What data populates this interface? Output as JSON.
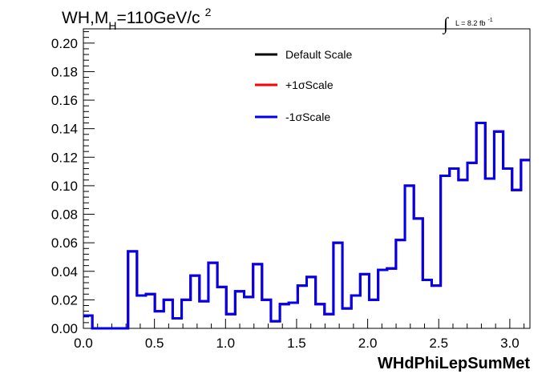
{
  "chart_data": {
    "type": "line",
    "title": {
      "main": "WH,M",
      "sub": "H",
      "rest": "=110GeV/c",
      "sup": "2"
    },
    "lumi": {
      "integral": "∫",
      "text": "L = 8.2 fb",
      "sup": "-1"
    },
    "xlabel": "WHdPhiLepSumMet",
    "ylabel": "",
    "xlim": [
      0.0,
      3.1416
    ],
    "ylim": [
      0.0,
      0.21
    ],
    "x_ticks": [
      "0.0",
      "0.5",
      "1.0",
      "1.5",
      "2.0",
      "2.5",
      "3.0"
    ],
    "y_ticks": [
      "0.00",
      "0.02",
      "0.04",
      "0.06",
      "0.08",
      "0.10",
      "0.12",
      "0.14",
      "0.16",
      "0.18",
      "0.20"
    ],
    "grid": false,
    "legend_placement": "top-center",
    "bin_edges": [
      0.0,
      0.0628,
      0.1257,
      0.1885,
      0.2513,
      0.3142,
      0.377,
      0.4398,
      0.5027,
      0.5655,
      0.6283,
      0.6912,
      0.754,
      0.8168,
      0.8796,
      0.9425,
      1.0053,
      1.0681,
      1.131,
      1.1938,
      1.2566,
      1.3195,
      1.3823,
      1.4451,
      1.508,
      1.5708,
      1.6336,
      1.6965,
      1.7593,
      1.8221,
      1.885,
      1.9478,
      2.0106,
      2.0735,
      2.1363,
      2.1991,
      2.2619,
      2.3248,
      2.3876,
      2.4504,
      2.5133,
      2.5761,
      2.6389,
      2.7018,
      2.7646,
      2.8274,
      2.8903,
      2.9531,
      3.0159,
      3.0788,
      3.1416
    ],
    "series": [
      {
        "name": "Default Scale",
        "color": "#000000",
        "values": [
          0.009,
          0.0,
          0.0,
          0.0,
          0.0,
          0.054,
          0.023,
          0.024,
          0.012,
          0.02,
          0.007,
          0.02,
          0.037,
          0.019,
          0.046,
          0.029,
          0.01,
          0.026,
          0.022,
          0.045,
          0.02,
          0.005,
          0.017,
          0.018,
          0.03,
          0.036,
          0.017,
          0.01,
          0.06,
          0.014,
          0.023,
          0.038,
          0.02,
          0.041,
          0.042,
          0.062,
          0.1,
          0.077,
          0.034,
          0.03,
          0.107,
          0.112,
          0.104,
          0.116,
          0.144,
          0.105,
          0.138,
          0.112,
          0.097,
          0.118
        ]
      },
      {
        "name": "+1σScale",
        "color": "#ff0000",
        "values": [
          0.009,
          0.0,
          0.0,
          0.0,
          0.0,
          0.054,
          0.023,
          0.024,
          0.012,
          0.02,
          0.007,
          0.02,
          0.037,
          0.019,
          0.046,
          0.029,
          0.01,
          0.026,
          0.022,
          0.045,
          0.02,
          0.005,
          0.017,
          0.018,
          0.03,
          0.036,
          0.017,
          0.01,
          0.06,
          0.014,
          0.023,
          0.038,
          0.02,
          0.041,
          0.042,
          0.062,
          0.1,
          0.077,
          0.034,
          0.03,
          0.107,
          0.112,
          0.104,
          0.116,
          0.144,
          0.105,
          0.138,
          0.112,
          0.097,
          0.118
        ]
      },
      {
        "name": "-1σScale",
        "color": "#0000ee",
        "values": [
          0.009,
          0.0,
          0.0,
          0.0,
          0.0,
          0.054,
          0.023,
          0.024,
          0.012,
          0.02,
          0.007,
          0.02,
          0.037,
          0.019,
          0.046,
          0.029,
          0.01,
          0.026,
          0.022,
          0.045,
          0.02,
          0.005,
          0.017,
          0.018,
          0.03,
          0.036,
          0.017,
          0.01,
          0.06,
          0.014,
          0.023,
          0.038,
          0.02,
          0.041,
          0.042,
          0.062,
          0.1,
          0.077,
          0.034,
          0.03,
          0.107,
          0.112,
          0.104,
          0.116,
          0.144,
          0.105,
          0.138,
          0.112,
          0.097,
          0.118
        ]
      }
    ]
  }
}
